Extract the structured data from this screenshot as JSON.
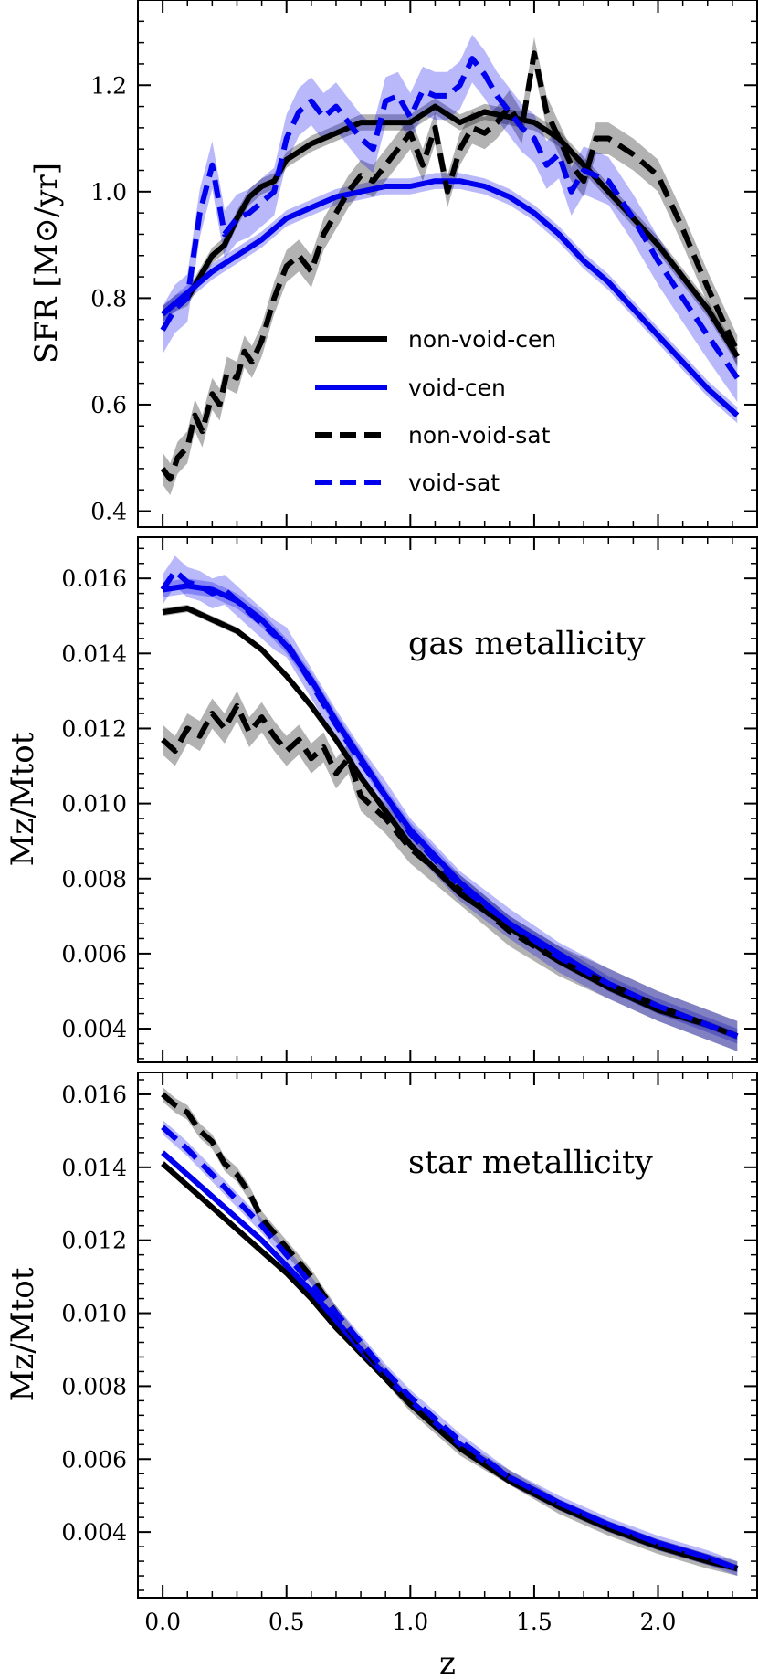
{
  "figure": {
    "xlabel": "z",
    "xticks": [
      "0.0",
      "0.5",
      "1.0",
      "1.5",
      "2.0"
    ]
  },
  "chart_data": [
    {
      "type": "line",
      "ylabel": "SFR [M⊙/yr]",
      "xlim": [
        -0.1,
        2.4
      ],
      "ylim": [
        0.37,
        1.36
      ],
      "yticks": [
        0.4,
        0.6,
        0.8,
        1.0,
        1.2
      ],
      "ytick_labels": [
        "0.4",
        "0.6",
        "0.8",
        "1.0",
        "1.2"
      ],
      "legend": {
        "placement": "center-right"
      },
      "series": [
        {
          "name": "non-void-cen",
          "color": "#000000",
          "style": "solid",
          "band": 0.015,
          "x": [
            0.0,
            0.05,
            0.1,
            0.15,
            0.2,
            0.25,
            0.3,
            0.35,
            0.4,
            0.45,
            0.5,
            0.6,
            0.7,
            0.8,
            0.9,
            1.0,
            1.1,
            1.2,
            1.3,
            1.4,
            1.5,
            1.6,
            1.7,
            1.8,
            1.9,
            2.0,
            2.1,
            2.2,
            2.32
          ],
          "y": [
            0.77,
            0.79,
            0.8,
            0.84,
            0.88,
            0.9,
            0.95,
            0.99,
            1.01,
            1.02,
            1.06,
            1.09,
            1.11,
            1.13,
            1.13,
            1.13,
            1.16,
            1.13,
            1.15,
            1.14,
            1.13,
            1.1,
            1.05,
            1.0,
            0.95,
            0.9,
            0.84,
            0.78,
            0.69
          ]
        },
        {
          "name": "void-cen",
          "color": "#0000ee",
          "style": "solid",
          "band": 0.015,
          "x": [
            0.0,
            0.1,
            0.2,
            0.3,
            0.4,
            0.5,
            0.6,
            0.7,
            0.8,
            0.9,
            1.0,
            1.1,
            1.2,
            1.3,
            1.4,
            1.5,
            1.6,
            1.7,
            1.8,
            1.9,
            2.0,
            2.1,
            2.2,
            2.32
          ],
          "y": [
            0.77,
            0.81,
            0.85,
            0.88,
            0.91,
            0.95,
            0.97,
            0.99,
            1.0,
            1.01,
            1.01,
            1.02,
            1.02,
            1.01,
            0.99,
            0.96,
            0.92,
            0.87,
            0.83,
            0.78,
            0.73,
            0.68,
            0.63,
            0.58
          ]
        },
        {
          "name": "non-void-sat",
          "color": "#000000",
          "style": "dashed",
          "band": 0.03,
          "x": [
            0.0,
            0.03,
            0.06,
            0.1,
            0.13,
            0.16,
            0.2,
            0.23,
            0.26,
            0.3,
            0.33,
            0.36,
            0.4,
            0.45,
            0.5,
            0.55,
            0.6,
            0.65,
            0.7,
            0.75,
            0.8,
            0.85,
            0.9,
            0.95,
            1.0,
            1.05,
            1.1,
            1.15,
            1.2,
            1.25,
            1.3,
            1.35,
            1.4,
            1.45,
            1.5,
            1.55,
            1.6,
            1.65,
            1.7,
            1.75,
            1.8,
            1.9,
            2.0,
            2.1,
            2.2,
            2.32
          ],
          "y": [
            0.48,
            0.46,
            0.5,
            0.52,
            0.58,
            0.55,
            0.62,
            0.6,
            0.66,
            0.65,
            0.7,
            0.68,
            0.72,
            0.8,
            0.86,
            0.88,
            0.85,
            0.92,
            0.96,
            1.0,
            1.03,
            1.02,
            1.05,
            1.08,
            1.11,
            1.05,
            1.12,
            1.0,
            1.08,
            1.12,
            1.11,
            1.13,
            1.16,
            1.12,
            1.26,
            1.15,
            1.1,
            1.05,
            1.02,
            1.1,
            1.1,
            1.07,
            1.03,
            0.93,
            0.82,
            0.7
          ]
        },
        {
          "name": "void-sat",
          "color": "#0000ee",
          "style": "dashed",
          "band": 0.045,
          "x": [
            0.0,
            0.05,
            0.1,
            0.15,
            0.2,
            0.25,
            0.3,
            0.35,
            0.4,
            0.45,
            0.5,
            0.55,
            0.6,
            0.65,
            0.7,
            0.75,
            0.8,
            0.85,
            0.9,
            0.95,
            1.0,
            1.05,
            1.1,
            1.15,
            1.2,
            1.25,
            1.3,
            1.35,
            1.4,
            1.45,
            1.5,
            1.55,
            1.6,
            1.65,
            1.7,
            1.8,
            1.9,
            2.0,
            2.1,
            2.2,
            2.32
          ],
          "y": [
            0.74,
            0.78,
            0.8,
            0.96,
            1.05,
            0.92,
            0.95,
            0.96,
            0.98,
            1.0,
            1.1,
            1.15,
            1.17,
            1.14,
            1.16,
            1.13,
            1.1,
            1.08,
            1.17,
            1.18,
            1.14,
            1.19,
            1.18,
            1.18,
            1.2,
            1.25,
            1.22,
            1.18,
            1.15,
            1.12,
            1.1,
            1.05,
            1.07,
            1.0,
            1.04,
            1.02,
            0.95,
            0.87,
            0.8,
            0.73,
            0.65
          ]
        }
      ]
    },
    {
      "type": "line",
      "ylabel": "Mz/Mtot",
      "annotation": "gas metallicity",
      "xlim": [
        -0.1,
        2.4
      ],
      "ylim": [
        0.0031,
        0.0171
      ],
      "yticks": [
        0.004,
        0.006,
        0.008,
        0.01,
        0.012,
        0.014,
        0.016
      ],
      "ytick_labels": [
        "0.004",
        "0.006",
        "0.008",
        "0.010",
        "0.012",
        "0.014",
        "0.016"
      ],
      "series": [
        {
          "name": "non-void-cen",
          "color": "#000000",
          "style": "solid",
          "band": 0.0001,
          "x": [
            0.0,
            0.1,
            0.2,
            0.3,
            0.4,
            0.5,
            0.6,
            0.7,
            0.8,
            0.9,
            1.0,
            1.2,
            1.4,
            1.6,
            1.8,
            2.0,
            2.2,
            2.32
          ],
          "y": [
            0.0151,
            0.0152,
            0.0149,
            0.0146,
            0.0141,
            0.0134,
            0.0126,
            0.0117,
            0.0107,
            0.0098,
            0.0089,
            0.0076,
            0.0067,
            0.0058,
            0.0051,
            0.0045,
            0.0041,
            0.0038
          ]
        },
        {
          "name": "void-cen",
          "color": "#0000ee",
          "style": "solid",
          "band": 0.0002,
          "x": [
            0.0,
            0.1,
            0.2,
            0.3,
            0.4,
            0.5,
            0.6,
            0.7,
            0.8,
            0.9,
            1.0,
            1.2,
            1.4,
            1.6,
            1.8,
            2.0,
            2.2,
            2.32
          ],
          "y": [
            0.0157,
            0.0158,
            0.0157,
            0.0154,
            0.0149,
            0.0142,
            0.0133,
            0.0122,
            0.0112,
            0.0102,
            0.0093,
            0.0079,
            0.0068,
            0.006,
            0.0052,
            0.0046,
            0.0041,
            0.0038
          ]
        },
        {
          "name": "non-void-sat",
          "color": "#000000",
          "style": "dashed",
          "band": 0.0004,
          "x": [
            0.0,
            0.05,
            0.1,
            0.15,
            0.2,
            0.25,
            0.3,
            0.35,
            0.4,
            0.45,
            0.5,
            0.55,
            0.6,
            0.65,
            0.7,
            0.75,
            0.8,
            0.9,
            1.0,
            1.2,
            1.4,
            1.6,
            1.8,
            2.0,
            2.2,
            2.32
          ],
          "y": [
            0.0117,
            0.0114,
            0.012,
            0.0118,
            0.0124,
            0.012,
            0.0126,
            0.0119,
            0.0123,
            0.0118,
            0.0114,
            0.0117,
            0.0112,
            0.0115,
            0.0108,
            0.0112,
            0.0102,
            0.0096,
            0.0088,
            0.0077,
            0.0066,
            0.0058,
            0.0052,
            0.0046,
            0.0041,
            0.0038
          ]
        },
        {
          "name": "void-sat",
          "color": "#0000ee",
          "style": "dashed",
          "band": 0.0004,
          "x": [
            0.0,
            0.05,
            0.1,
            0.15,
            0.2,
            0.25,
            0.3,
            0.35,
            0.4,
            0.45,
            0.5,
            0.6,
            0.7,
            0.8,
            0.9,
            1.0,
            1.2,
            1.4,
            1.6,
            1.8,
            2.0,
            2.2,
            2.32
          ],
          "y": [
            0.0157,
            0.0162,
            0.0159,
            0.0158,
            0.0156,
            0.0157,
            0.0154,
            0.0151,
            0.0148,
            0.0145,
            0.0143,
            0.0132,
            0.0121,
            0.0111,
            0.0102,
            0.0092,
            0.0078,
            0.0068,
            0.0059,
            0.0052,
            0.0046,
            0.0041,
            0.0038
          ]
        }
      ]
    },
    {
      "type": "line",
      "ylabel": "Mz/Mtot",
      "annotation": "star metallicity",
      "xlim": [
        -0.1,
        2.4
      ],
      "ylim": [
        0.0022,
        0.0166
      ],
      "yticks": [
        0.004,
        0.006,
        0.008,
        0.01,
        0.012,
        0.014,
        0.016
      ],
      "ytick_labels": [
        "0.004",
        "0.006",
        "0.008",
        "0.010",
        "0.012",
        "0.014",
        "0.016"
      ],
      "series": [
        {
          "name": "non-void-cen",
          "color": "#000000",
          "style": "solid",
          "band": 0.0001,
          "x": [
            0.0,
            0.1,
            0.2,
            0.3,
            0.4,
            0.5,
            0.6,
            0.7,
            0.8,
            0.9,
            1.0,
            1.2,
            1.4,
            1.6,
            1.8,
            2.0,
            2.2,
            2.32
          ],
          "y": [
            0.0141,
            0.0135,
            0.0129,
            0.0123,
            0.0117,
            0.0111,
            0.0104,
            0.0096,
            0.0089,
            0.0082,
            0.0075,
            0.0063,
            0.0054,
            0.0047,
            0.0041,
            0.0036,
            0.0032,
            0.003
          ]
        },
        {
          "name": "void-cen",
          "color": "#0000ee",
          "style": "solid",
          "band": 0.0001,
          "x": [
            0.0,
            0.1,
            0.2,
            0.3,
            0.4,
            0.5,
            0.6,
            0.7,
            0.8,
            0.9,
            1.0,
            1.2,
            1.4,
            1.6,
            1.8,
            2.0,
            2.2,
            2.32
          ],
          "y": [
            0.0144,
            0.0138,
            0.0132,
            0.0126,
            0.012,
            0.0113,
            0.0106,
            0.0098,
            0.009,
            0.0083,
            0.0076,
            0.0064,
            0.0055,
            0.0048,
            0.0042,
            0.0037,
            0.0033,
            0.003
          ]
        },
        {
          "name": "non-void-sat",
          "color": "#000000",
          "style": "dashed",
          "band": 0.0002,
          "x": [
            0.0,
            0.05,
            0.1,
            0.15,
            0.2,
            0.25,
            0.3,
            0.35,
            0.4,
            0.5,
            0.6,
            0.7,
            0.8,
            0.9,
            1.0,
            1.2,
            1.4,
            1.6,
            1.8,
            2.0,
            2.2,
            2.32
          ],
          "y": [
            0.016,
            0.0157,
            0.0155,
            0.015,
            0.0147,
            0.0141,
            0.0138,
            0.0133,
            0.0126,
            0.0118,
            0.011,
            0.01,
            0.0091,
            0.0083,
            0.0075,
            0.0063,
            0.0055,
            0.0047,
            0.0041,
            0.0036,
            0.0032,
            0.003
          ]
        },
        {
          "name": "void-sat",
          "color": "#0000ee",
          "style": "dashed",
          "band": 0.0002,
          "x": [
            0.0,
            0.1,
            0.2,
            0.3,
            0.4,
            0.5,
            0.6,
            0.7,
            0.8,
            0.9,
            1.0,
            1.2,
            1.4,
            1.6,
            1.8,
            2.0,
            2.2,
            2.32
          ],
          "y": [
            0.0151,
            0.0145,
            0.0138,
            0.0131,
            0.0124,
            0.0116,
            0.0108,
            0.01,
            0.0092,
            0.0084,
            0.0077,
            0.0065,
            0.0055,
            0.0048,
            0.0042,
            0.0037,
            0.0033,
            0.003
          ]
        }
      ]
    }
  ]
}
